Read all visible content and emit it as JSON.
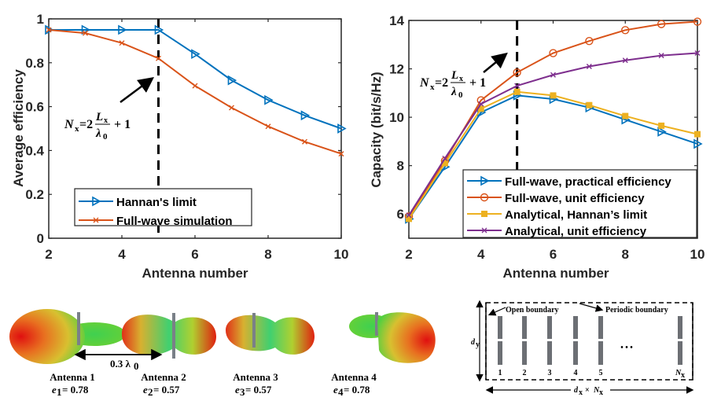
{
  "chart_data": [
    {
      "type": "line",
      "title": "",
      "xlabel": "Antenna number",
      "ylabel": "Average efficiency",
      "x": [
        2,
        3,
        4,
        5,
        6,
        7,
        8,
        9,
        10
      ],
      "xlim": [
        2,
        10
      ],
      "ylim": [
        0,
        1
      ],
      "xticks": [
        "2",
        "4",
        "6",
        "8",
        "10"
      ],
      "yticks": [
        "0",
        "0.2",
        "0.4",
        "0.6",
        "0.8",
        "1"
      ],
      "xtick_values": [
        2,
        4,
        6,
        8,
        10
      ],
      "ytick_values": [
        0,
        0.2,
        0.4,
        0.6,
        0.8,
        1
      ],
      "legend_position": "bottom-center",
      "series": [
        {
          "name": "Hannan's limit",
          "color": "#0072BD",
          "marker": "triangle-right",
          "values": [
            0.95,
            0.95,
            0.95,
            0.95,
            0.84,
            0.72,
            0.63,
            0.56,
            0.5
          ]
        },
        {
          "name": "Full-wave simulation",
          "color": "#D95319",
          "marker": "x",
          "values": [
            0.95,
            0.935,
            0.89,
            0.82,
            0.695,
            0.595,
            0.51,
            0.44,
            0.385
          ]
        }
      ],
      "vline": {
        "x": 5
      },
      "annotation": {
        "lhs": "N",
        "lhs_sub": "x",
        "eq": "=2",
        "num": "L",
        "num_sub": "x",
        "den": "λ",
        "den_sub": "0",
        "tail": "+ 1"
      }
    },
    {
      "type": "line",
      "title": "",
      "xlabel": "Antenna number",
      "ylabel": "Capacity (bit/s/Hz)",
      "x": [
        2,
        3,
        4,
        5,
        6,
        7,
        8,
        9,
        10
      ],
      "xlim": [
        2,
        10
      ],
      "ylim": [
        5,
        14
      ],
      "xticks": [
        "2",
        "4",
        "6",
        "8",
        "10"
      ],
      "yticks": [
        "6",
        "8",
        "10",
        "12",
        "14"
      ],
      "xtick_values": [
        2,
        4,
        6,
        8,
        10
      ],
      "ytick_values": [
        6,
        8,
        10,
        12,
        14
      ],
      "legend_position": "bottom-right",
      "series": [
        {
          "name": "Full-wave, practical efficiency",
          "color": "#0072BD",
          "marker": "triangle-right",
          "values": [
            5.8,
            7.95,
            10.2,
            10.9,
            10.75,
            10.4,
            9.9,
            9.4,
            8.9
          ]
        },
        {
          "name": "Full-wave, unit efficiency",
          "color": "#D95319",
          "marker": "circle",
          "values": [
            5.9,
            8.2,
            10.7,
            11.85,
            12.65,
            13.15,
            13.6,
            13.85,
            13.95
          ]
        },
        {
          "name": "Analytical, Hannan’s limit",
          "color": "#EDB120",
          "marker": "square",
          "values": [
            5.8,
            8.1,
            10.35,
            11.05,
            10.9,
            10.5,
            10.05,
            9.65,
            9.3
          ]
        },
        {
          "name": "Analytical, unit efficiency",
          "color": "#7E2F8E",
          "marker": "x",
          "values": [
            5.95,
            8.3,
            10.55,
            11.3,
            11.75,
            12.1,
            12.35,
            12.55,
            12.65
          ]
        }
      ],
      "vline": {
        "x": 5
      },
      "annotation": {
        "lhs": "N",
        "lhs_sub": "x",
        "eq": "=2",
        "num": "L",
        "num_sub": "x",
        "den": "λ",
        "den_sub": "0",
        "tail": "+ 1"
      }
    }
  ],
  "patterns": {
    "spacing_label": "0.3 λ",
    "spacing_sub": "0",
    "antennas": [
      {
        "name": "Antenna 1",
        "eff_symbol": "e",
        "eff_sub": "1",
        "eff_value": "= 0.78"
      },
      {
        "name": "Antenna 2",
        "eff_symbol": "e",
        "eff_sub": "2",
        "eff_value": "= 0.57"
      },
      {
        "name": "Antenna 3",
        "eff_symbol": "e",
        "eff_sub": "3",
        "eff_value": "= 0.57"
      },
      {
        "name": "Antenna 4",
        "eff_symbol": "e",
        "eff_sub": "4",
        "eff_value": "= 0.78"
      }
    ]
  },
  "array_diagram": {
    "open_boundary": "Open boundary",
    "periodic_boundary": "Periodic boundary",
    "dy_label": "d",
    "dy_sub": "y",
    "width_label_a": "d",
    "width_sub_a": "x",
    "width_times": "×",
    "width_label_b": "N",
    "width_sub_b": "x",
    "element_labels": [
      "1",
      "2",
      "3",
      "4",
      "5"
    ],
    "last_label": "N",
    "last_sub": "x",
    "ellipsis": "• • •"
  }
}
